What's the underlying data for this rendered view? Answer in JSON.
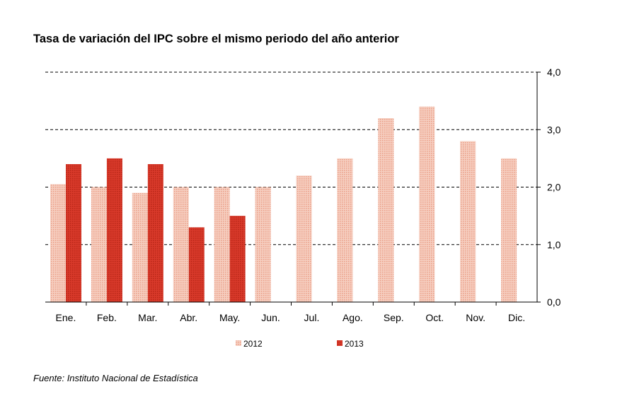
{
  "title": "Tasa de variación del IPC sobre el mismo periodo del año anterior",
  "source": "Fuente: Instituto Nacional de Estadística",
  "colors": {
    "s2012": "#f2b9a4",
    "s2013": "#d93a2b"
  },
  "chart_data": {
    "type": "bar",
    "categories": [
      "Ene.",
      "Feb.",
      "Mar.",
      "Abr.",
      "May.",
      "Jun.",
      "Jul.",
      "Ago.",
      "Sep.",
      "Oct.",
      "Nov.",
      "Dic."
    ],
    "series": [
      {
        "name": "2012",
        "values": [
          2.05,
          2.0,
          1.9,
          2.0,
          2.0,
          2.0,
          2.2,
          2.5,
          3.2,
          3.4,
          2.8,
          2.5
        ]
      },
      {
        "name": "2013",
        "values": [
          2.4,
          2.5,
          2.4,
          1.3,
          1.5,
          null,
          null,
          null,
          null,
          null,
          null,
          null
        ]
      }
    ],
    "y_ticks": [
      "0,0",
      "1,0",
      "2,0",
      "3,0",
      "4,0"
    ],
    "ylim": [
      0,
      4
    ],
    "grid": "dashed horizontal",
    "y_axis_side": "right",
    "legend_position": "bottom"
  }
}
